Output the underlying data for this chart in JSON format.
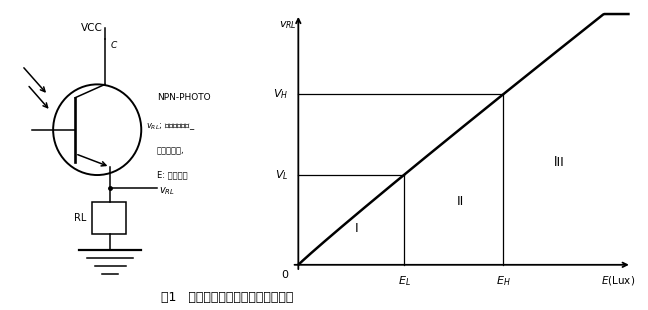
{
  "figure_title": "图1   光电三极管输出响应特性示意图",
  "y_axis_label": "v_{RL}",
  "x_axis_label": "E(Lux)",
  "VH_label": "V_H",
  "VL_label": "V_L",
  "EL_label": "E_L",
  "EH_label": "E_H",
  "region_I": "I",
  "region_II": "II",
  "region_III": "lII",
  "VCC_label": "VCC",
  "C_label": "C",
  "RL_label": "RL",
  "vRL_label": "v_{RL}",
  "npn_label": "NPN-PHOTO",
  "ann1": "v_{RL}; 光电流在负载_",
  "ann2": "形成的电压,",
  "ann3": "E: 入射照度",
  "bg_color": "#ffffff",
  "curve_color": "#000000",
  "EL": 0.32,
  "EH": 0.62,
  "VH": 0.72,
  "VL": 0.38,
  "xlim_max": 1.0,
  "ylim_max": 1.05
}
